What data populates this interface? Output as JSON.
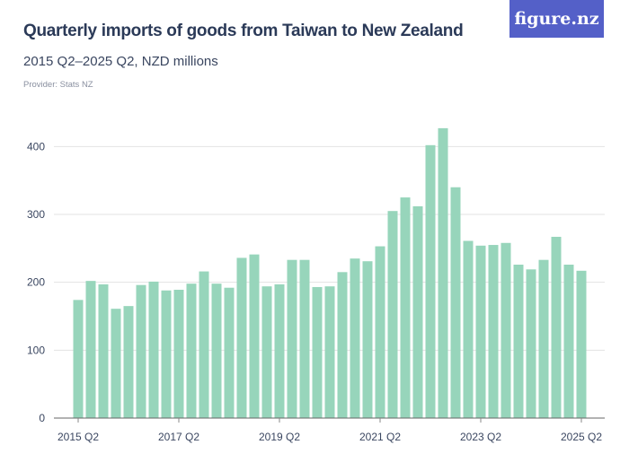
{
  "header": {
    "title": "Quarterly imports of goods from Taiwan to New Zealand",
    "subtitle": "2015 Q2–2025 Q2, NZD millions",
    "provider": "Provider: Stats NZ",
    "logo": "figure.nz"
  },
  "chart_data": {
    "type": "bar",
    "title": "Quarterly imports of goods from Taiwan to New Zealand",
    "subtitle": "2015 Q2–2025 Q2, NZD millions",
    "xlabel": "",
    "ylabel": "",
    "ylim": [
      0,
      440
    ],
    "yticks": [
      0,
      100,
      200,
      300,
      400
    ],
    "xtick_labels": [
      "2015 Q2",
      "2017 Q2",
      "2019 Q2",
      "2021 Q2",
      "2023 Q2",
      "2025 Q2"
    ],
    "grid": true,
    "bar_color": "#97d5bb",
    "categories": [
      "2015 Q2",
      "2015 Q3",
      "2015 Q4",
      "2016 Q1",
      "2016 Q2",
      "2016 Q3",
      "2016 Q4",
      "2017 Q1",
      "2017 Q2",
      "2017 Q3",
      "2017 Q4",
      "2018 Q1",
      "2018 Q2",
      "2018 Q3",
      "2018 Q4",
      "2019 Q1",
      "2019 Q2",
      "2019 Q3",
      "2019 Q4",
      "2020 Q1",
      "2020 Q2",
      "2020 Q3",
      "2020 Q4",
      "2021 Q1",
      "2021 Q2",
      "2021 Q3",
      "2021 Q4",
      "2022 Q1",
      "2022 Q2",
      "2022 Q3",
      "2022 Q4",
      "2023 Q1",
      "2023 Q2",
      "2023 Q3",
      "2023 Q4",
      "2024 Q1",
      "2024 Q2",
      "2024 Q3",
      "2024 Q4",
      "2025 Q1",
      "2025 Q2"
    ],
    "values": [
      174,
      202,
      197,
      161,
      165,
      196,
      201,
      188,
      189,
      198,
      216,
      198,
      192,
      236,
      241,
      194,
      197,
      233,
      233,
      193,
      194,
      215,
      235,
      231,
      253,
      305,
      325,
      312,
      402,
      427,
      340,
      261,
      254,
      255,
      258,
      226,
      219,
      233,
      267,
      226,
      217
    ]
  }
}
